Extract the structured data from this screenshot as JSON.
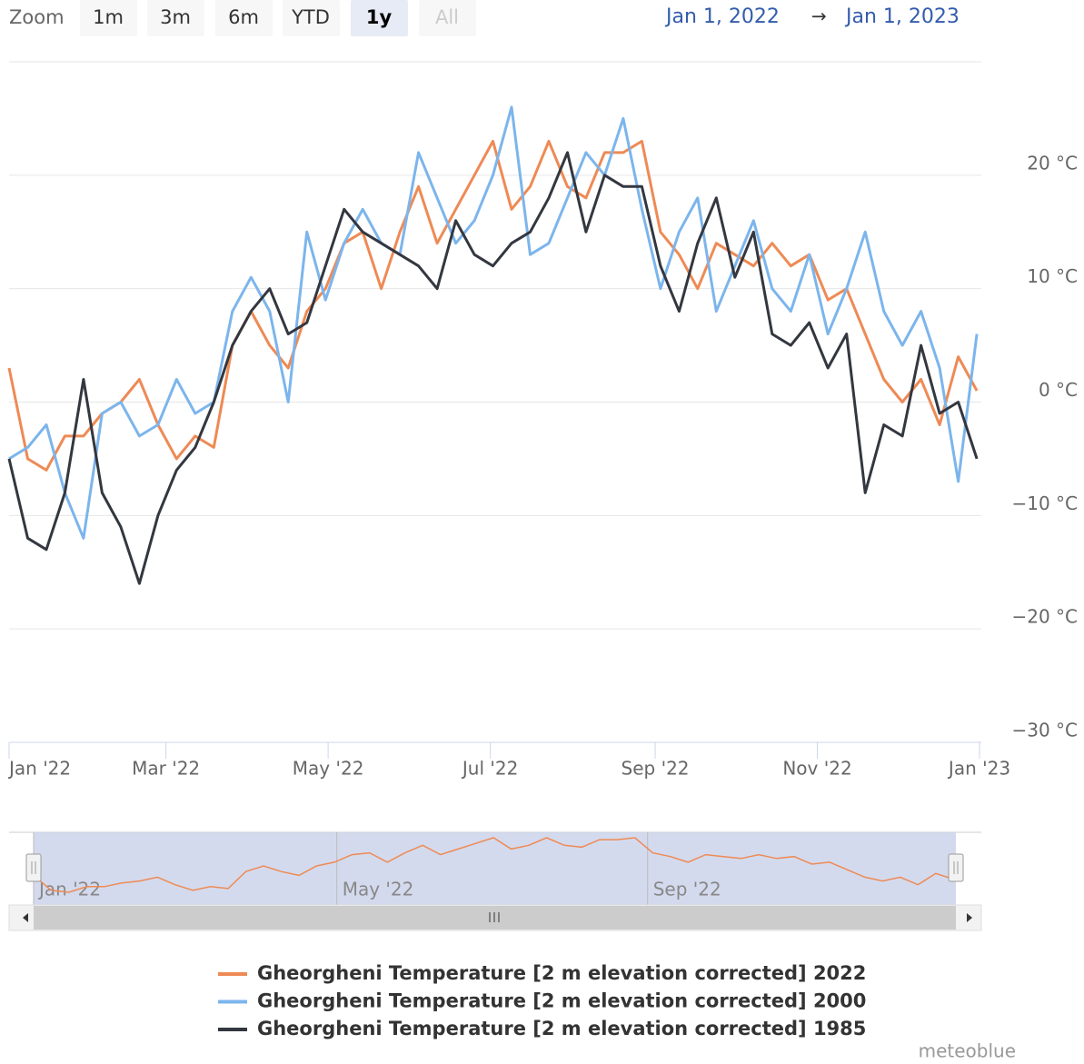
{
  "chart_data": {
    "type": "line",
    "zoom_label": "Zoom",
    "zoom_buttons": [
      "1m",
      "3m",
      "6m",
      "YTD",
      "1y",
      "All"
    ],
    "selected_zoom": "1y",
    "disabled_zoom": "All",
    "range_from": "Jan 1, 2022",
    "range_arrow": "→",
    "range_to": "Jan 1, 2023",
    "x": [
      0,
      7,
      14,
      21,
      28,
      35,
      42,
      49,
      56,
      63,
      70,
      77,
      84,
      91,
      98,
      105,
      112,
      119,
      126,
      133,
      140,
      147,
      154,
      161,
      168,
      175,
      182,
      189,
      196,
      203,
      210,
      217,
      224,
      231,
      238,
      245,
      252,
      259,
      266,
      273,
      280,
      287,
      294,
      301,
      308,
      315,
      322,
      329,
      336,
      343,
      350,
      357,
      364
    ],
    "xlim": [
      0,
      365
    ],
    "xticks": [
      {
        "value": 0,
        "label": "Jan '22"
      },
      {
        "value": 59,
        "label": "Mar '22"
      },
      {
        "value": 120,
        "label": "May '22"
      },
      {
        "value": 181,
        "label": "Jul '22"
      },
      {
        "value": 243,
        "label": "Sep '22"
      },
      {
        "value": 304,
        "label": "Nov '22"
      },
      {
        "value": 365,
        "label": "Jan '23"
      }
    ],
    "ylim": [
      -30,
      30
    ],
    "yticks": [
      {
        "value": 20,
        "label": "20 °C"
      },
      {
        "value": 10,
        "label": "10 °C"
      },
      {
        "value": 0,
        "label": "0 °C"
      },
      {
        "value": -10,
        "label": "−10 °C"
      },
      {
        "value": -20,
        "label": "−20 °C"
      },
      {
        "value": -30,
        "label": "−30 °C"
      }
    ],
    "grid": true,
    "series": [
      {
        "name": "Gheorgheni Temperature [2 m elevation corrected] 2022",
        "color": "#ee8a55",
        "values": [
          3,
          -5,
          -6,
          -3,
          -3,
          -1,
          0,
          2,
          -2,
          -5,
          -3,
          -4,
          5,
          8,
          5,
          3,
          8,
          10,
          14,
          15,
          10,
          15,
          19,
          14,
          17,
          20,
          23,
          17,
          19,
          23,
          19,
          18,
          22,
          22,
          23,
          15,
          13,
          10,
          14,
          13,
          12,
          14,
          12,
          13,
          9,
          10,
          6,
          2,
          0,
          2,
          -2,
          4,
          1
        ]
      },
      {
        "name": "Gheorgheni Temperature [2 m elevation corrected] 2000",
        "color": "#7cb5ec",
        "values": [
          -5,
          -4,
          -2,
          -8,
          -12,
          -1,
          0,
          -3,
          -2,
          2,
          -1,
          0,
          8,
          11,
          8,
          0,
          15,
          9,
          14,
          17,
          14,
          13,
          22,
          18,
          14,
          16,
          20,
          26,
          13,
          14,
          18,
          22,
          20,
          25,
          17,
          10,
          15,
          18,
          8,
          12,
          16,
          10,
          8,
          13,
          6,
          10,
          15,
          8,
          5,
          8,
          3,
          -7,
          6
        ]
      },
      {
        "name": "Gheorgheni Temperature [2 m elevation corrected] 1985",
        "color": "#333740",
        "values": [
          -5,
          -12,
          -13,
          -8,
          2,
          -8,
          -11,
          -16,
          -10,
          -6,
          -4,
          0,
          5,
          8,
          10,
          6,
          7,
          12,
          17,
          15,
          14,
          13,
          12,
          10,
          16,
          13,
          12,
          14,
          15,
          18,
          22,
          15,
          20,
          19,
          19,
          12,
          8,
          14,
          18,
          11,
          15,
          6,
          5,
          7,
          3,
          6,
          -8,
          -2,
          -3,
          5,
          -1,
          0,
          -5
        ]
      }
    ],
    "navigator": {
      "xticks": [
        {
          "value": 0,
          "label": "Jan '22"
        },
        {
          "value": 120,
          "label": "May '22"
        },
        {
          "value": 243,
          "label": "Sep '22"
        }
      ]
    },
    "credit": "meteoblue"
  }
}
